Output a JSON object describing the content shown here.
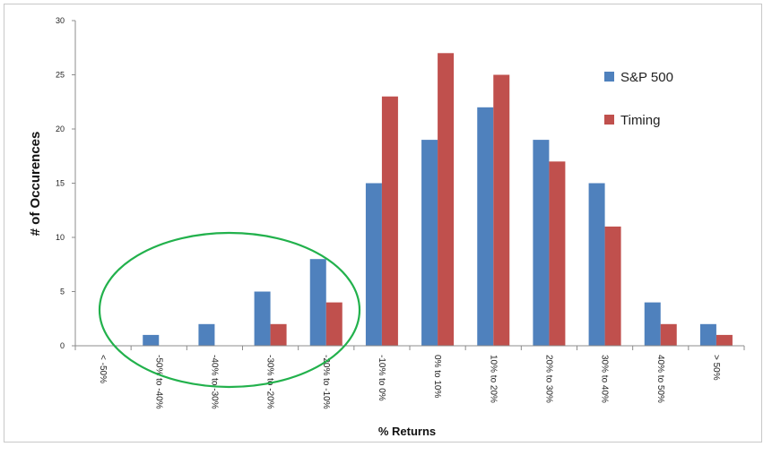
{
  "chart_data": {
    "type": "bar",
    "title": "",
    "xlabel": "% Returns",
    "ylabel": "# of Occurences",
    "ylim": [
      0,
      30
    ],
    "yticks": [
      0,
      5,
      10,
      15,
      20,
      25,
      30
    ],
    "grid": false,
    "legend_position": "right",
    "categories": [
      "< -50%",
      "-50% to -40%",
      "-40% to -30%",
      "-30% to -20%",
      "-20% to -10%",
      "-10% to 0%",
      "0% to 10%",
      "10% to 20%",
      "20% to 30%",
      "30% to 40%",
      "40% to 50%",
      "> 50%"
    ],
    "series": [
      {
        "name": "S&P 500",
        "color": "#4f81bd",
        "values": [
          0,
          1,
          2,
          5,
          8,
          15,
          19,
          22,
          19,
          15,
          4,
          2
        ]
      },
      {
        "name": "Timing",
        "color": "#c0504d",
        "values": [
          0,
          0,
          0,
          2,
          4,
          23,
          27,
          25,
          17,
          11,
          2,
          1
        ]
      }
    ],
    "annotation": {
      "shape": "ellipse",
      "color": "#22b14c"
    }
  }
}
